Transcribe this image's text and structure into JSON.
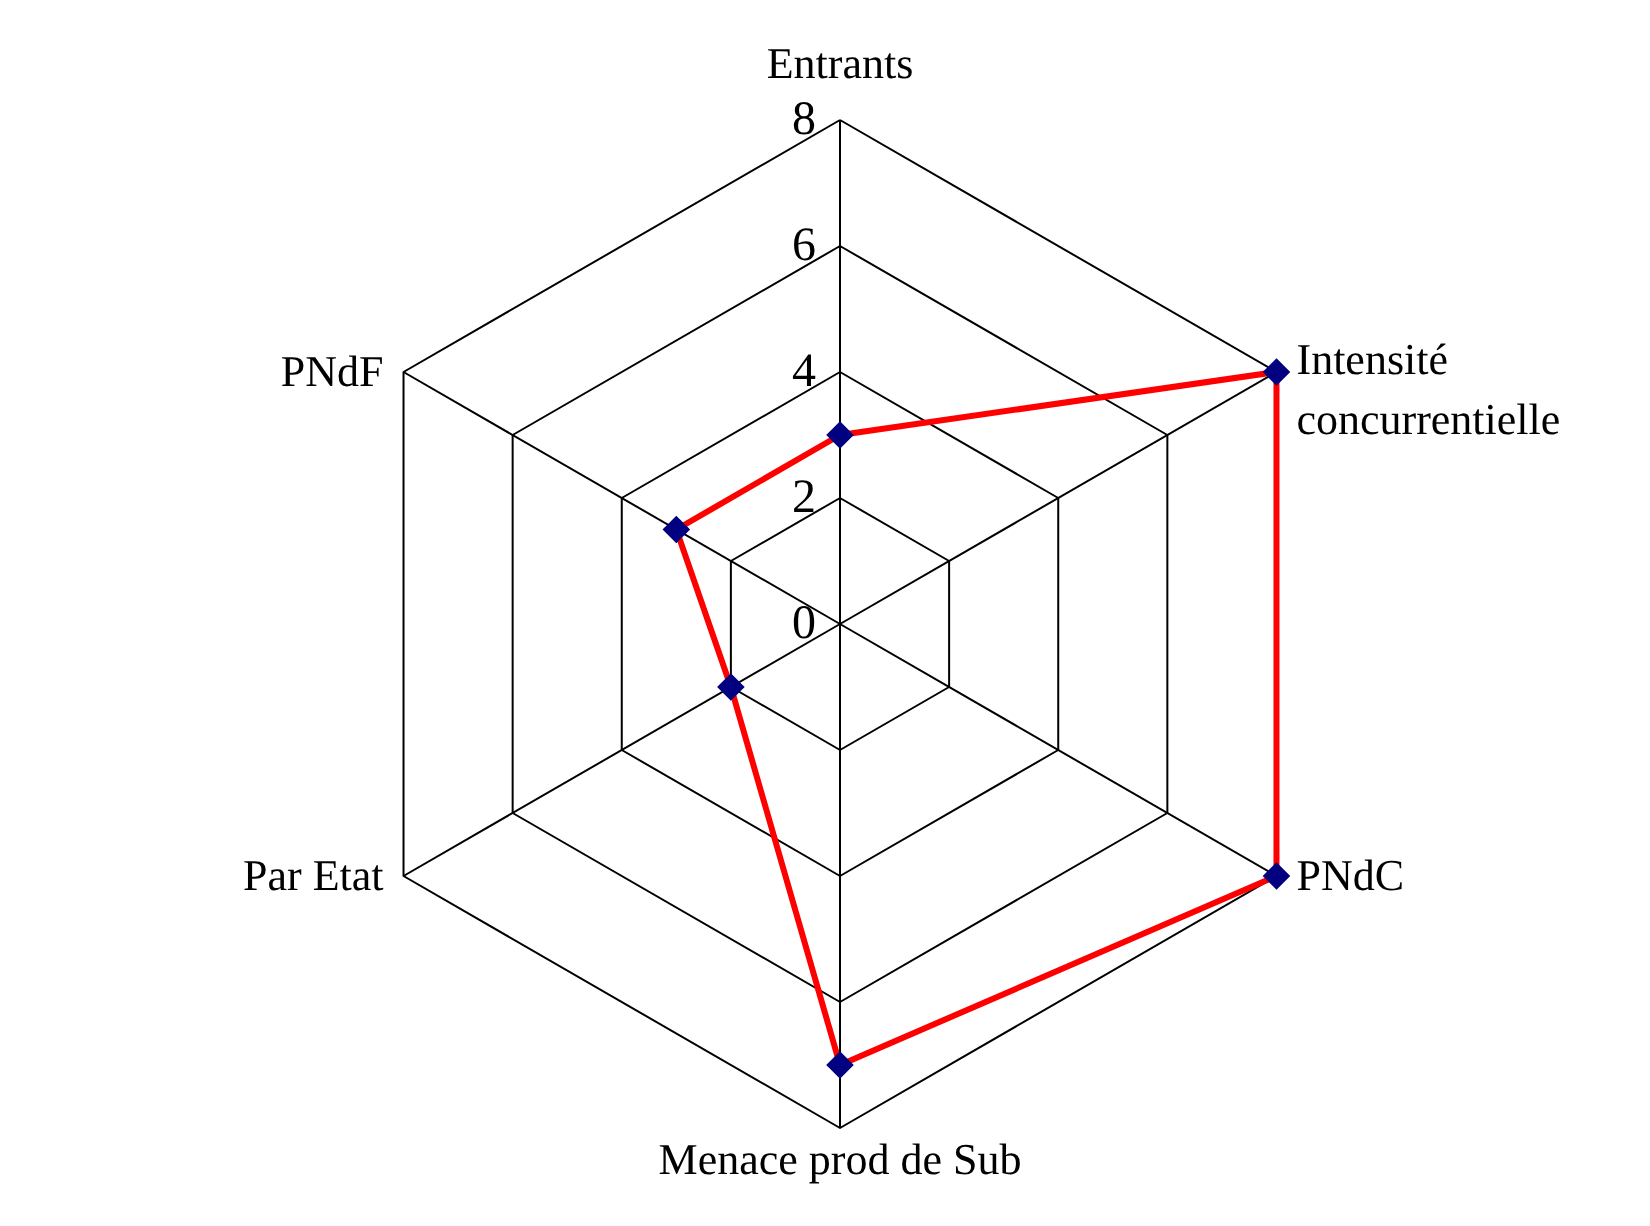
{
  "chart_data": {
    "type": "radar",
    "categories": [
      "Entrants",
      "Intensité\nconcurrentielle",
      "PNdC",
      "Menace prod de Sub",
      "Par Etat",
      "PNdF"
    ],
    "series": [
      {
        "color": "#ff0000",
        "values": [
          3,
          8,
          8,
          7,
          2,
          3
        ]
      }
    ],
    "ylim": [
      0,
      8
    ],
    "yticks": [
      0,
      2,
      4,
      6,
      8
    ],
    "grid": true,
    "marker": "diamond",
    "line_style": "solid"
  }
}
